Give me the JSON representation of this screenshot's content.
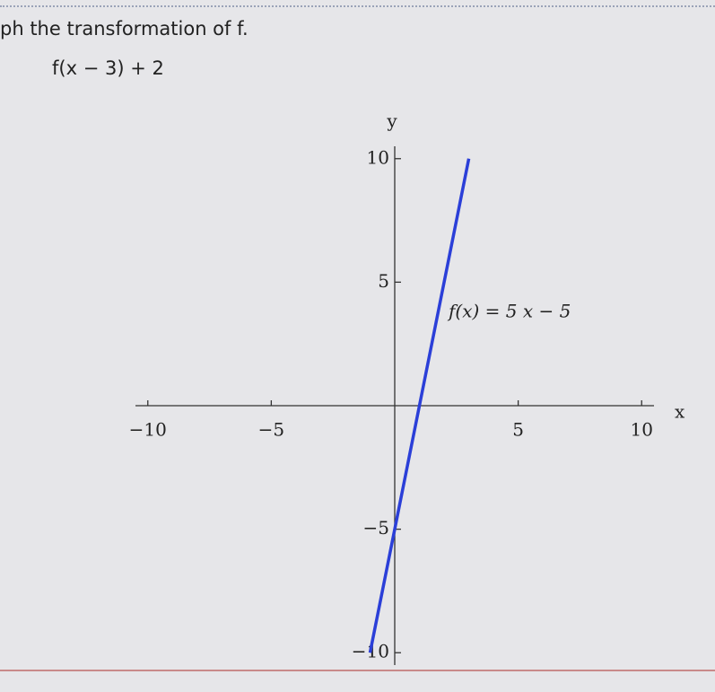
{
  "prompt": "ph the transformation of f.",
  "expression": "f(x − 3) + 2",
  "chart_data": {
    "type": "line",
    "xlabel": "x",
    "ylabel": "y",
    "x": [
      -1,
      3
    ],
    "series": [
      {
        "name": "f(x) = 5 x − 5",
        "color": "#2b3fd8",
        "values": [
          -10,
          10
        ]
      }
    ],
    "xlim": [
      -10.5,
      10.5
    ],
    "ylim": [
      -10.5,
      10.5
    ],
    "xticks": [
      {
        "value": -10,
        "label": "−10"
      },
      {
        "value": -5,
        "label": "−5"
      },
      5,
      10
    ],
    "yticks": [
      {
        "value": -10,
        "label": "−10"
      },
      {
        "value": -5,
        "label": "−5"
      },
      5,
      10
    ]
  }
}
